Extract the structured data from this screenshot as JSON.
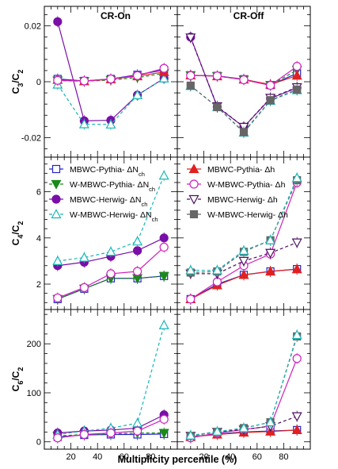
{
  "figure": {
    "xlabel": "Multiplicity percentile (%)",
    "columns": [
      "CR-On",
      "CR-Off"
    ]
  },
  "legend": {
    "left": [
      {
        "label": "MBWC-Pythia- ΔN",
        "sub": "ch",
        "series": "mbwc_pythia"
      },
      {
        "label": "W-MBWC-Pythia- ΔN",
        "sub": "ch",
        "series": "wmbwc_pythia"
      },
      {
        "label": "MBWC-Herwig- ΔN",
        "sub": "ch",
        "series": "mbwc_herwig"
      },
      {
        "label": "W-MBWC-Herwig- ΔN",
        "sub": "ch",
        "series": "wmbwc_herwig"
      }
    ],
    "right": [
      {
        "label": "MBWC-Pythia- Δh",
        "sub": "",
        "series": "mbwc_pythia"
      },
      {
        "label": "W-MBWC-Pythia- Δh",
        "sub": "",
        "series": "wmbwc_pythia"
      },
      {
        "label": "MBWC-Herwig- Δh",
        "sub": "",
        "series": "mbwc_herwig"
      },
      {
        "label": "W-MBWC-Herwig- Δh",
        "sub": "",
        "series": "wmbwc_herwig"
      }
    ]
  },
  "styles": {
    "mbwc_pythia": {
      "color": "#2525c8",
      "marker": "open-square",
      "dash": "solid"
    },
    "wmbwc_pythia": {
      "color": "#1a8a1a",
      "marker": "filled-triangle-down",
      "dash": "dashed"
    },
    "mbwc_herwig": {
      "color": "#7a0ea8",
      "marker": "filled-circle",
      "dash": "solid"
    },
    "wmbwc_herwig": {
      "color": "#1ab5b5",
      "marker": "open-triangle-up",
      "dash": "dashed"
    },
    "right_mbwc_pythia": {
      "color": "#e02020",
      "marker": "filled-triangle-up",
      "dash": "solid"
    },
    "right_wmbwc_pythia": {
      "color": "#d020c0",
      "marker": "open-circle",
      "dash": "solid"
    },
    "right_mbwc_herwig": {
      "color": "#4b1060",
      "marker": "open-triangle-down",
      "dash": "dashed"
    },
    "right_wmbwc_herwig": {
      "color": "#666666",
      "marker": "filled-square",
      "dash": "dashed"
    }
  },
  "chart_data": [
    {
      "type": "scatter",
      "id": "c3_cr_on",
      "title": "CR-On",
      "ylabel": "C3/C2",
      "xlim": [
        0,
        100
      ],
      "ylim": [
        -0.027,
        0.027
      ],
      "yticks": [
        -0.02,
        0,
        0.02
      ],
      "x": [
        10,
        30,
        50,
        70,
        90
      ],
      "series": [
        {
          "id": "mbwc_pythia",
          "values": [
            0.001,
            0.0003,
            0.001,
            0.0025,
            0.0042
          ]
        },
        {
          "id": "wmbwc_pythia",
          "values": [
            0.0004,
            0.0002,
            0.0006,
            0.0015,
            0.003
          ]
        },
        {
          "id": "mbwc_herwig",
          "values": [
            0.0215,
            -0.014,
            -0.0138,
            -0.0048,
            0.0012
          ]
        },
        {
          "id": "wmbwc_herwig",
          "values": [
            -0.001,
            -0.0152,
            -0.0153,
            -0.0048,
            0.0012
          ]
        },
        {
          "id": "right_mbwc_pythia",
          "values": [
            0.0007,
            0.0002,
            0.0009,
            0.002,
            0.0035
          ]
        },
        {
          "id": "right_wmbwc_pythia",
          "values": [
            0.0005,
            0.0003,
            0.001,
            0.0022,
            0.0048
          ]
        }
      ]
    },
    {
      "type": "scatter",
      "id": "c3_cr_off",
      "title": "CR-Off",
      "ylabel": "",
      "xlim": [
        0,
        100
      ],
      "ylim": [
        -0.027,
        0.027
      ],
      "x": [
        10,
        30,
        50,
        70,
        90
      ],
      "series": [
        {
          "id": "mbwc_pythia",
          "values": [
            0.0023,
            0.0021,
            0.0009,
            -0.0012,
            0.003
          ]
        },
        {
          "id": "wmbwc_pythia",
          "values": [
            0.0023,
            0.002,
            0.0008,
            -0.0012,
            0.0042
          ]
        },
        {
          "id": "mbwc_herwig",
          "values": [
            0.016,
            -0.009,
            -0.0162,
            -0.006,
            -0.0022
          ]
        },
        {
          "id": "wmbwc_herwig",
          "values": [
            -0.0015,
            -0.009,
            -0.0182,
            -0.0068,
            -0.003
          ]
        },
        {
          "id": "right_mbwc_pythia",
          "values": [
            0.0023,
            0.002,
            0.0008,
            -0.001,
            0.0022
          ]
        },
        {
          "id": "right_wmbwc_pythia",
          "values": [
            0.0022,
            0.0021,
            0.0007,
            -0.0013,
            0.0055
          ]
        },
        {
          "id": "right_mbwc_herwig",
          "values": [
            0.0158,
            -0.0088,
            -0.0162,
            -0.0058,
            -0.002
          ]
        },
        {
          "id": "right_wmbwc_herwig",
          "values": [
            -0.0014,
            -0.0091,
            -0.018,
            -0.0066,
            -0.0028
          ]
        }
      ]
    },
    {
      "type": "scatter",
      "id": "c4_cr_on",
      "ylabel": "C4/C2",
      "xlim": [
        0,
        100
      ],
      "ylim": [
        0.9,
        7.5
      ],
      "yticks": [
        2,
        4,
        6
      ],
      "x": [
        10,
        30,
        50,
        70,
        90
      ],
      "series": [
        {
          "id": "mbwc_pythia",
          "values": [
            1.35,
            1.8,
            2.25,
            2.25,
            2.35
          ]
        },
        {
          "id": "wmbwc_pythia",
          "values": [
            1.35,
            1.8,
            2.25,
            2.25,
            2.35
          ]
        },
        {
          "id": "mbwc_herwig",
          "values": [
            2.8,
            2.95,
            3.2,
            3.45,
            4.0
          ]
        },
        {
          "id": "wmbwc_herwig",
          "values": [
            3.0,
            3.15,
            3.4,
            3.85,
            6.7
          ]
        },
        {
          "id": "right_wmbwc_pythia",
          "values": [
            1.4,
            1.85,
            2.45,
            2.55,
            3.6
          ]
        }
      ]
    },
    {
      "type": "scatter",
      "id": "c4_cr_off",
      "ylabel": "",
      "xlim": [
        0,
        100
      ],
      "ylim": [
        0.9,
        7.5
      ],
      "x": [
        10,
        30,
        50,
        70,
        90
      ],
      "series": [
        {
          "id": "mbwc_pythia",
          "values": [
            1.35,
            2.0,
            2.4,
            2.55,
            2.65
          ]
        },
        {
          "id": "right_mbwc_pythia",
          "values": [
            1.35,
            1.95,
            2.4,
            2.55,
            2.65
          ]
        },
        {
          "id": "right_wmbwc_pythia",
          "values": [
            1.35,
            2.1,
            2.8,
            3.3,
            6.4
          ]
        },
        {
          "id": "right_mbwc_herwig",
          "values": [
            2.45,
            2.45,
            3.0,
            3.35,
            3.8
          ]
        },
        {
          "id": "right_wmbwc_herwig",
          "values": [
            2.5,
            2.55,
            3.4,
            3.9,
            6.5
          ]
        },
        {
          "id": "wmbwc_herwig",
          "values": [
            2.6,
            2.6,
            3.45,
            3.9,
            6.6
          ]
        }
      ]
    },
    {
      "type": "scatter",
      "id": "c6_cr_on",
      "ylabel": "C6/C2",
      "xlim": [
        0,
        100
      ],
      "ylim": [
        -15,
        270
      ],
      "yticks": [
        0,
        100,
        200
      ],
      "x": [
        10,
        30,
        50,
        70,
        90
      ],
      "series": [
        {
          "id": "mbwc_pythia",
          "values": [
            10,
            14,
            15,
            15,
            16
          ]
        },
        {
          "id": "wmbwc_pythia",
          "values": [
            12,
            15,
            16,
            18,
            18
          ]
        },
        {
          "id": "mbwc_herwig",
          "values": [
            18,
            22,
            24,
            28,
            55
          ]
        },
        {
          "id": "wmbwc_herwig",
          "values": [
            15,
            22,
            28,
            38,
            238
          ]
        },
        {
          "id": "right_wmbwc_pythia",
          "values": [
            8,
            15,
            18,
            22,
            46
          ]
        }
      ]
    },
    {
      "type": "scatter",
      "id": "c6_cr_off",
      "ylabel": "",
      "xlim": [
        0,
        100
      ],
      "ylim": [
        -15,
        270
      ],
      "xticks": [
        20,
        40,
        60,
        80
      ],
      "x": [
        10,
        30,
        50,
        70,
        90
      ],
      "series": [
        {
          "id": "mbwc_pythia",
          "values": [
            10,
            16,
            20,
            22,
            24
          ]
        },
        {
          "id": "right_mbwc_pythia",
          "values": [
            10,
            15,
            19,
            21,
            24
          ]
        },
        {
          "id": "right_wmbwc_pythia",
          "values": [
            8,
            18,
            25,
            32,
            170
          ]
        },
        {
          "id": "right_mbwc_herwig",
          "values": [
            12,
            20,
            25,
            32,
            52
          ]
        },
        {
          "id": "right_wmbwc_herwig",
          "values": [
            12,
            20,
            28,
            40,
            215
          ]
        },
        {
          "id": "wmbwc_herwig",
          "values": [
            13,
            21,
            28,
            40,
            218
          ]
        }
      ]
    }
  ]
}
